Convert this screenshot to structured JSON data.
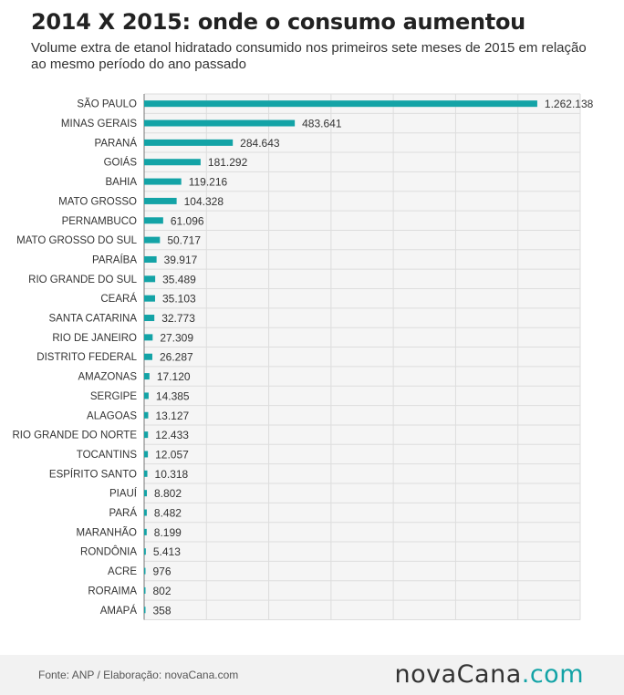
{
  "header": {
    "title": "2014 X 2015: onde o consumo aumentou",
    "subtitle": "Volume extra de etanol hidratado consumido nos primeiros sete meses de 2015 em relação ao mesmo período do ano passado"
  },
  "footer": {
    "source": "Fonte: ANP / Elaboração: novaCana.com",
    "logo_main": "novaCana",
    "logo_domain": ".com"
  },
  "colors": {
    "bar": "#13a3a6",
    "grid": "#dddddd",
    "plot_background": "#f5f5f5",
    "footer_background": "#f2f2f2"
  },
  "chart_data": {
    "type": "bar",
    "orientation": "horizontal",
    "title": "",
    "xlabel": "",
    "ylabel": "",
    "xlim": [
      0,
      1400000
    ],
    "grid": true,
    "categories": [
      "SÃO PAULO",
      "MINAS GERAIS",
      "PARANÁ",
      "GOIÁS",
      "BAHIA",
      "MATO GROSSO",
      "PERNAMBUCO",
      "MATO GROSSO DO SUL",
      "PARAÍBA",
      "RIO GRANDE DO SUL",
      "CEARÁ",
      "SANTA CATARINA",
      "RIO DE JANEIRO",
      "DISTRITO FEDERAL",
      "AMAZONAS",
      "SERGIPE",
      "ALAGOAS",
      "RIO GRANDE DO NORTE",
      "TOCANTINS",
      "ESPÍRITO SANTO",
      "PIAUÍ",
      "PARÁ",
      "MARANHÃO",
      "RONDÔNIA",
      "ACRE",
      "RORAIMA",
      "AMAPÁ"
    ],
    "values": [
      1262138,
      483641,
      284643,
      181292,
      119216,
      104328,
      61096,
      50717,
      39917,
      35489,
      35103,
      32773,
      27309,
      26287,
      17120,
      14385,
      13127,
      12433,
      12057,
      10318,
      8802,
      8482,
      8199,
      5413,
      976,
      802,
      358
    ],
    "value_labels": [
      "1.262.138",
      "483.641",
      "284.643",
      "181.292",
      "119.216",
      "104.328",
      "61.096",
      "50.717",
      "39.917",
      "35.489",
      "35.103",
      "32.773",
      "27.309",
      "26.287",
      "17.120",
      "14.385",
      "13.127",
      "12.433",
      "12.057",
      "10.318",
      "8.802",
      "8.482",
      "8.199",
      "5.413",
      "976",
      "802",
      "358"
    ]
  }
}
